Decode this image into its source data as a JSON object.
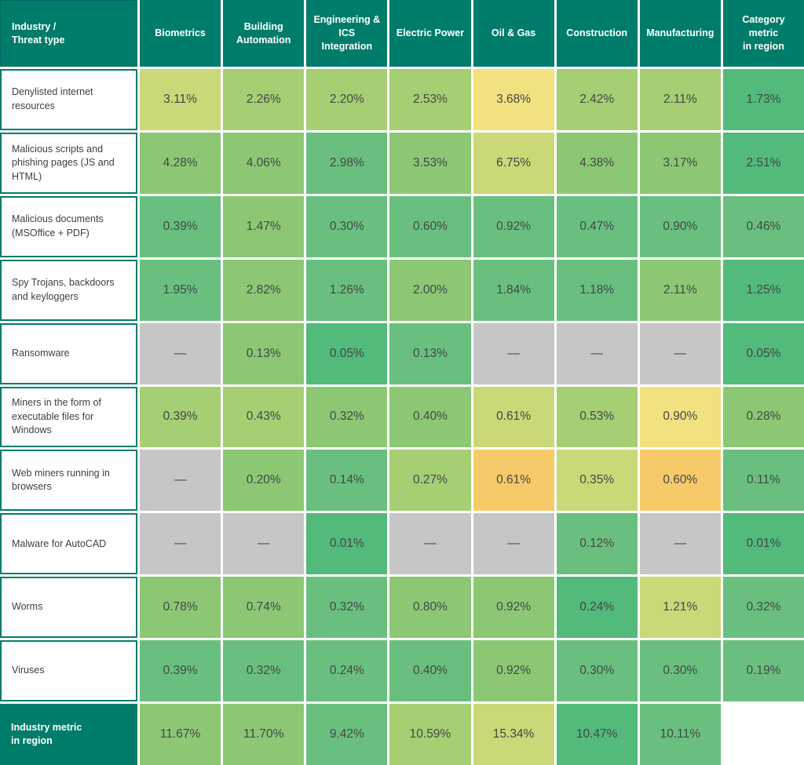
{
  "colors": {
    "header_teal": "#007d6a",
    "label_text": "#3d4043",
    "value_text": "#42474b"
  },
  "palette": {
    "A": "#52ba7b",
    "B": "#69c07e",
    "C": "#8cc873",
    "D": "#a6ce73",
    "E": "#cbd877",
    "F": "#f2e27f",
    "G": "#f7ca69",
    "H": "#c6c6c6",
    "W": "#ffffff"
  },
  "table": {
    "corner_header": "Industry /\nThreat type",
    "columns": [
      "Biometrics",
      "Building\nAutomation",
      "Engineering & ICS\nIntegration",
      "Electric Power",
      "Oil & Gas",
      "Construction",
      "Manufacturing",
      "Category metric\nin region"
    ],
    "rows": [
      {
        "label": "Denylisted internet resources",
        "footer": false,
        "cells": [
          {
            "t": "3.11%",
            "c": "E"
          },
          {
            "t": "2.26%",
            "c": "D"
          },
          {
            "t": "2.20%",
            "c": "D"
          },
          {
            "t": "2.53%",
            "c": "D"
          },
          {
            "t": "3.68%",
            "c": "F"
          },
          {
            "t": "2.42%",
            "c": "D"
          },
          {
            "t": "2.11%",
            "c": "D"
          },
          {
            "t": "1.73%",
            "c": "A"
          }
        ]
      },
      {
        "label": "Malicious scripts and phishing pages (JS and HTML)",
        "footer": false,
        "cells": [
          {
            "t": "4.28%",
            "c": "C"
          },
          {
            "t": "4.06%",
            "c": "C"
          },
          {
            "t": "2.98%",
            "c": "B"
          },
          {
            "t": "3.53%",
            "c": "C"
          },
          {
            "t": "6.75%",
            "c": "E"
          },
          {
            "t": "4.38%",
            "c": "C"
          },
          {
            "t": "3.17%",
            "c": "C"
          },
          {
            "t": "2.51%",
            "c": "A"
          }
        ]
      },
      {
        "label": "Malicious documents (MSOffice + PDF)",
        "footer": false,
        "cells": [
          {
            "t": "0.39%",
            "c": "B"
          },
          {
            "t": "1.47%",
            "c": "C"
          },
          {
            "t": "0.30%",
            "c": "B"
          },
          {
            "t": "0.60%",
            "c": "B"
          },
          {
            "t": "0.92%",
            "c": "B"
          },
          {
            "t": "0.47%",
            "c": "B"
          },
          {
            "t": "0.90%",
            "c": "B"
          },
          {
            "t": "0.46%",
            "c": "B"
          }
        ]
      },
      {
        "label": "Spy Trojans, backdoors and keyloggers",
        "footer": false,
        "cells": [
          {
            "t": "1.95%",
            "c": "B"
          },
          {
            "t": "2.82%",
            "c": "C"
          },
          {
            "t": "1.26%",
            "c": "B"
          },
          {
            "t": "2.00%",
            "c": "C"
          },
          {
            "t": "1.84%",
            "c": "B"
          },
          {
            "t": "1.18%",
            "c": "B"
          },
          {
            "t": "2.11%",
            "c": "C"
          },
          {
            "t": "1.25%",
            "c": "A"
          }
        ]
      },
      {
        "label": "Ransomware",
        "footer": false,
        "cells": [
          {
            "t": "—",
            "c": "H"
          },
          {
            "t": "0.13%",
            "c": "C"
          },
          {
            "t": "0.05%",
            "c": "A"
          },
          {
            "t": "0.13%",
            "c": "B"
          },
          {
            "t": "—",
            "c": "H"
          },
          {
            "t": "—",
            "c": "H"
          },
          {
            "t": "—",
            "c": "H"
          },
          {
            "t": "0.05%",
            "c": "A"
          }
        ]
      },
      {
        "label": "Miners in the form of executable files for Windows",
        "footer": false,
        "cells": [
          {
            "t": "0.39%",
            "c": "D"
          },
          {
            "t": "0.43%",
            "c": "D"
          },
          {
            "t": "0.32%",
            "c": "C"
          },
          {
            "t": "0.40%",
            "c": "C"
          },
          {
            "t": "0.61%",
            "c": "E"
          },
          {
            "t": "0.53%",
            "c": "D"
          },
          {
            "t": "0.90%",
            "c": "F"
          },
          {
            "t": "0.28%",
            "c": "C"
          }
        ]
      },
      {
        "label": "Web miners running in browsers",
        "footer": false,
        "cells": [
          {
            "t": "—",
            "c": "H"
          },
          {
            "t": "0.20%",
            "c": "C"
          },
          {
            "t": "0.14%",
            "c": "B"
          },
          {
            "t": "0.27%",
            "c": "D"
          },
          {
            "t": "0.61%",
            "c": "G"
          },
          {
            "t": "0.35%",
            "c": "E"
          },
          {
            "t": "0.60%",
            "c": "G"
          },
          {
            "t": "0.11%",
            "c": "B"
          }
        ]
      },
      {
        "label": "Malware for AutoCAD",
        "footer": false,
        "cells": [
          {
            "t": "—",
            "c": "H"
          },
          {
            "t": "—",
            "c": "H"
          },
          {
            "t": "0.01%",
            "c": "A"
          },
          {
            "t": "—",
            "c": "H"
          },
          {
            "t": "—",
            "c": "H"
          },
          {
            "t": "0.12%",
            "c": "B"
          },
          {
            "t": "—",
            "c": "H"
          },
          {
            "t": "0.01%",
            "c": "A"
          }
        ]
      },
      {
        "label": "Worms",
        "footer": false,
        "cells": [
          {
            "t": "0.78%",
            "c": "C"
          },
          {
            "t": "0.74%",
            "c": "C"
          },
          {
            "t": "0.32%",
            "c": "B"
          },
          {
            "t": "0.80%",
            "c": "C"
          },
          {
            "t": "0.92%",
            "c": "C"
          },
          {
            "t": "0.24%",
            "c": "A"
          },
          {
            "t": "1.21%",
            "c": "E"
          },
          {
            "t": "0.32%",
            "c": "B"
          }
        ]
      },
      {
        "label": "Viruses",
        "footer": false,
        "cells": [
          {
            "t": "0.39%",
            "c": "B"
          },
          {
            "t": "0.32%",
            "c": "B"
          },
          {
            "t": "0.24%",
            "c": "B"
          },
          {
            "t": "0.40%",
            "c": "B"
          },
          {
            "t": "0.92%",
            "c": "C"
          },
          {
            "t": "0.30%",
            "c": "B"
          },
          {
            "t": "0.30%",
            "c": "B"
          },
          {
            "t": "0.19%",
            "c": "B"
          }
        ]
      },
      {
        "label": "Industry metric\nin region",
        "footer": true,
        "cells": [
          {
            "t": "11.67%",
            "c": "C"
          },
          {
            "t": "11.70%",
            "c": "C"
          },
          {
            "t": "9.42%",
            "c": "B"
          },
          {
            "t": "10.59%",
            "c": "D"
          },
          {
            "t": "15.34%",
            "c": "E"
          },
          {
            "t": "10.47%",
            "c": "A"
          },
          {
            "t": "10.11%",
            "c": "B"
          },
          {
            "t": "",
            "c": "W"
          }
        ]
      }
    ]
  },
  "chart_data": {
    "type": "heatmap",
    "title": "Industry / Threat type",
    "unit": "%",
    "columns": [
      "Biometrics",
      "Building Automation",
      "Engineering & ICS Integration",
      "Electric Power",
      "Oil & Gas",
      "Construction",
      "Manufacturing",
      "Category metric in region"
    ],
    "rows": [
      "Denylisted internet resources",
      "Malicious scripts and phishing pages (JS and HTML)",
      "Malicious documents (MSOffice + PDF)",
      "Spy Trojans, backdoors and keyloggers",
      "Ransomware",
      "Miners in the form of executable files for Windows",
      "Web miners running in browsers",
      "Malware for AutoCAD",
      "Worms",
      "Viruses",
      "Industry metric in region"
    ],
    "values": [
      [
        3.11,
        2.26,
        2.2,
        2.53,
        3.68,
        2.42,
        2.11,
        1.73
      ],
      [
        4.28,
        4.06,
        2.98,
        3.53,
        6.75,
        4.38,
        3.17,
        2.51
      ],
      [
        0.39,
        1.47,
        0.3,
        0.6,
        0.92,
        0.47,
        0.9,
        0.46
      ],
      [
        1.95,
        2.82,
        1.26,
        2.0,
        1.84,
        1.18,
        2.11,
        1.25
      ],
      [
        null,
        0.13,
        0.05,
        0.13,
        null,
        null,
        null,
        0.05
      ],
      [
        0.39,
        0.43,
        0.32,
        0.4,
        0.61,
        0.53,
        0.9,
        0.28
      ],
      [
        null,
        0.2,
        0.14,
        0.27,
        0.61,
        0.35,
        0.6,
        0.11
      ],
      [
        null,
        null,
        0.01,
        null,
        null,
        0.12,
        null,
        0.01
      ],
      [
        0.78,
        0.74,
        0.32,
        0.8,
        0.92,
        0.24,
        1.21,
        0.32
      ],
      [
        0.39,
        0.32,
        0.24,
        0.4,
        0.92,
        0.3,
        0.3,
        0.19
      ],
      [
        11.67,
        11.7,
        9.42,
        10.59,
        15.34,
        10.47,
        10.11,
        null
      ]
    ],
    "legend": "color encodes rate: dark green (low) → yellow → orange (high); gray = no data (—)",
    "grid": true
  }
}
